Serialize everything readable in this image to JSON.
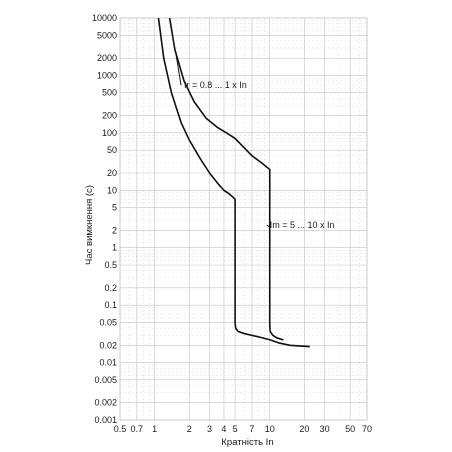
{
  "chart_data": {
    "type": "line",
    "xscale": "log",
    "yscale": "log",
    "xlabel": "Кратність In",
    "ylabel": "Час вимкнення (с)",
    "xlim": [
      0.5,
      70
    ],
    "ylim": [
      0.001,
      10000
    ],
    "x_ticks": [
      "0.5",
      "0.7",
      "1",
      "2",
      "3",
      "4",
      "5",
      "7",
      "10",
      "20",
      "30",
      "50",
      "70"
    ],
    "y_ticks": [
      "0.001",
      "0.002",
      "0.005",
      "0.01",
      "0.02",
      "0.05",
      "0.1",
      "0.2",
      "0.5",
      "1",
      "2",
      "5",
      "10",
      "20",
      "50",
      "100",
      "200",
      "500",
      "1000",
      "2000",
      "5000",
      "10000"
    ],
    "grid": true,
    "series": [
      {
        "name": "",
        "x": [
          1.08,
          1.2,
          1.4,
          1.7,
          2.0,
          2.5,
          3.0,
          3.5,
          4.0,
          4.5,
          5.0,
          5.0,
          5.05,
          5.3,
          6.0,
          8.0,
          10.0,
          12.0,
          15.0,
          18.0,
          22.0
        ],
        "y": [
          10000,
          2000,
          500,
          150,
          75,
          35,
          20,
          13.5,
          10,
          8.5,
          7,
          0.05,
          0.04,
          0.035,
          0.032,
          0.028,
          0.025,
          0.022,
          0.02,
          0.0195,
          0.019
        ]
      },
      {
        "name": "",
        "x": [
          1.35,
          1.5,
          1.8,
          2.2,
          2.8,
          3.5,
          4.2,
          5.0,
          6.0,
          7.0,
          8.5,
          10.0,
          10.0,
          10.08,
          10.6,
          11.5,
          13.0
        ],
        "y": [
          10000,
          2800,
          800,
          350,
          180,
          125,
          100,
          80,
          55,
          40,
          30,
          23,
          0.045,
          0.035,
          0.03,
          0.027,
          0.025
        ]
      }
    ],
    "annotations": [
      {
        "text": "Ir = 0.8 ... 1 x In",
        "x": 1.8,
        "y": 600
      },
      {
        "text": "Im = 5 ... 10 x In",
        "x": 10.0,
        "y": 2.2
      }
    ]
  }
}
